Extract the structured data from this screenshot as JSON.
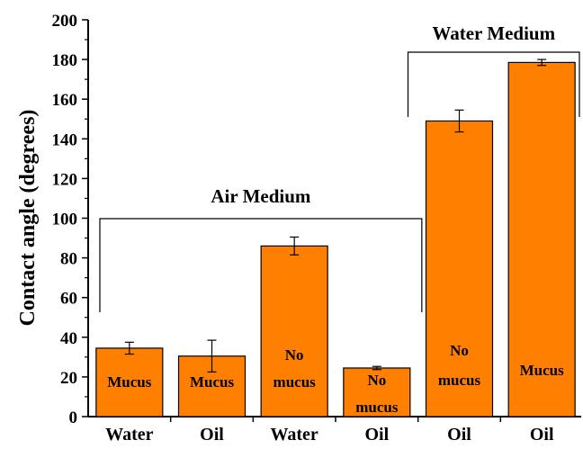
{
  "chart_data": {
    "type": "bar",
    "title": "",
    "xlabel": "",
    "ylabel": "Contact angle (degrees)",
    "ylim": [
      0,
      200
    ],
    "yticks": [
      0,
      20,
      40,
      60,
      80,
      100,
      120,
      140,
      160,
      180,
      200
    ],
    "bar_color": "#ff8000",
    "categories": [
      "Water",
      "Oil",
      "Water",
      "Oil",
      "Oil",
      "Oil"
    ],
    "values": [
      34.5,
      30.5,
      86,
      24.5,
      149,
      178.5
    ],
    "errors": [
      3,
      8,
      4.5,
      0.8,
      5.5,
      1.5
    ],
    "bar_labels": [
      [
        "Mucus"
      ],
      [
        "Mucus"
      ],
      [
        "No",
        "mucus"
      ],
      [
        "No",
        "mucus"
      ],
      [
        "No",
        "mucus"
      ],
      [
        "Mucus"
      ]
    ],
    "groups": [
      {
        "label": "Air Medium",
        "first_bar": 0,
        "last_bar": 3
      },
      {
        "label": "Water Medium",
        "first_bar": 4,
        "last_bar": 5
      }
    ]
  }
}
